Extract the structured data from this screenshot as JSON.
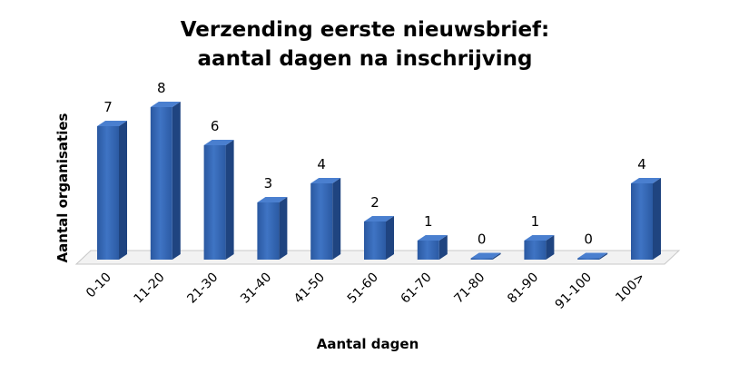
{
  "chart_data": {
    "type": "bar",
    "title_line1": "Verzending eerste nieuwsbrief:",
    "title_line2": "aantal dagen na inschrijving",
    "xlabel": "Aantal dagen",
    "ylabel": "Aantal organisaties",
    "categories": [
      "0-10",
      "11-20",
      "21-30",
      "31-40",
      "41-50",
      "51-60",
      "61-70",
      "71-80",
      "81-90",
      "91-100",
      "100>"
    ],
    "values": [
      7,
      8,
      6,
      3,
      4,
      2,
      1,
      0,
      1,
      0,
      4
    ],
    "ylim": [
      0,
      8
    ],
    "grid": false,
    "legend": "none",
    "bar_color": "#2f5fa8",
    "bar_top_color": "#4a7fcf",
    "bar_side_color": "#1f4480",
    "floor_color": "#f2f2f2"
  }
}
